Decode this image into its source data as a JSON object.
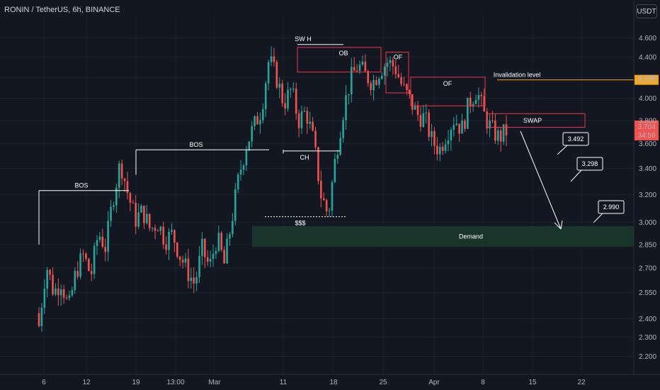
{
  "header": {
    "symbol_title": "RONIN / TetherUS, 6h, BINANCE",
    "currency": "USDT"
  },
  "colors": {
    "background": "#131722",
    "bull": "#26a69a",
    "bear": "#ef5350",
    "zone_red": "#f23645",
    "demand_fill": "#1b3a2b",
    "invalidation": "#f5a623",
    "annotation": "#ffffff"
  },
  "chart_data": {
    "type": "candlestick",
    "y_scale": "log",
    "ylim": [
      2.12,
      4.86
    ],
    "y_ticks": [
      4.6,
      4.4,
      4.2,
      4.0,
      3.8,
      3.6,
      3.4,
      3.2,
      3.0,
      2.85,
      2.7,
      2.55,
      2.4,
      2.3,
      2.2
    ],
    "y_tick_labels": [
      "4.600",
      "4.400",
      "4.200",
      "4.000",
      "3.800",
      "3.600",
      "3.400",
      "3.200",
      "3.000",
      "2.850",
      "2.700",
      "2.550",
      "2.400",
      "2.300",
      "2.200"
    ],
    "x_ticks": [
      "6",
      "12",
      "19",
      "13:00",
      "Mar",
      "11",
      "18",
      "25",
      "Apr",
      "8",
      "15",
      "22"
    ],
    "price_path": [
      [
        0,
        2.36
      ],
      [
        1,
        2.72
      ],
      [
        2,
        2.55
      ],
      [
        3,
        2.62
      ],
      [
        4,
        2.45
      ],
      [
        5,
        2.68
      ],
      [
        6,
        2.78
      ],
      [
        7,
        2.65
      ],
      [
        8,
        2.93
      ],
      [
        9,
        2.83
      ],
      [
        10,
        3.18
      ],
      [
        11,
        3.45
      ],
      [
        12,
        3.2
      ],
      [
        13,
        3.02
      ],
      [
        14,
        3.08
      ],
      [
        15,
        2.95
      ],
      [
        16,
        3.0
      ],
      [
        17,
        2.88
      ],
      [
        18,
        2.92
      ],
      [
        19,
        2.78
      ],
      [
        20,
        2.68
      ],
      [
        21,
        2.6
      ],
      [
        22,
        2.82
      ],
      [
        23,
        2.7
      ],
      [
        24,
        2.9
      ],
      [
        25,
        2.72
      ],
      [
        26,
        3.02
      ],
      [
        27,
        3.35
      ],
      [
        28,
        3.6
      ],
      [
        29,
        3.75
      ],
      [
        30,
        3.9
      ],
      [
        31,
        4.38
      ],
      [
        32,
        4.2
      ],
      [
        33,
        3.95
      ],
      [
        34,
        4.08
      ],
      [
        35,
        3.8
      ],
      [
        36,
        3.88
      ],
      [
        37,
        3.62
      ],
      [
        38,
        3.2
      ],
      [
        39,
        3.05
      ],
      [
        40,
        3.5
      ],
      [
        41,
        3.88
      ],
      [
        42,
        4.18
      ],
      [
        43,
        4.32
      ],
      [
        44,
        4.22
      ],
      [
        45,
        4.15
      ],
      [
        46,
        4.28
      ],
      [
        47,
        4.35
      ],
      [
        48,
        4.3
      ],
      [
        49,
        4.1
      ],
      [
        50,
        3.98
      ],
      [
        51,
        3.85
      ],
      [
        52,
        3.82
      ],
      [
        53,
        3.62
      ],
      [
        54,
        3.55
      ],
      [
        55,
        3.7
      ],
      [
        56,
        3.82
      ],
      [
        57,
        3.72
      ],
      [
        58,
        3.96
      ],
      [
        59,
        4.08
      ],
      [
        60,
        3.85
      ],
      [
        61,
        3.72
      ],
      [
        62,
        3.65
      ],
      [
        63,
        3.704
      ]
    ],
    "last_price": "3.704",
    "invalidation_price": "4.174",
    "countdown": "34:56",
    "annotations": {
      "bos1": "BOS",
      "bos2": "BOS",
      "swh": "SW H",
      "ob": "OB",
      "of1": "OF",
      "of2": "OF",
      "ch": "CH",
      "liquidity": "$$$",
      "invalidation": "Invalidation level",
      "swap": "SWAP",
      "demand": "Demand",
      "target1": "3.492",
      "target2": "3.298",
      "target3": "2.990"
    }
  }
}
